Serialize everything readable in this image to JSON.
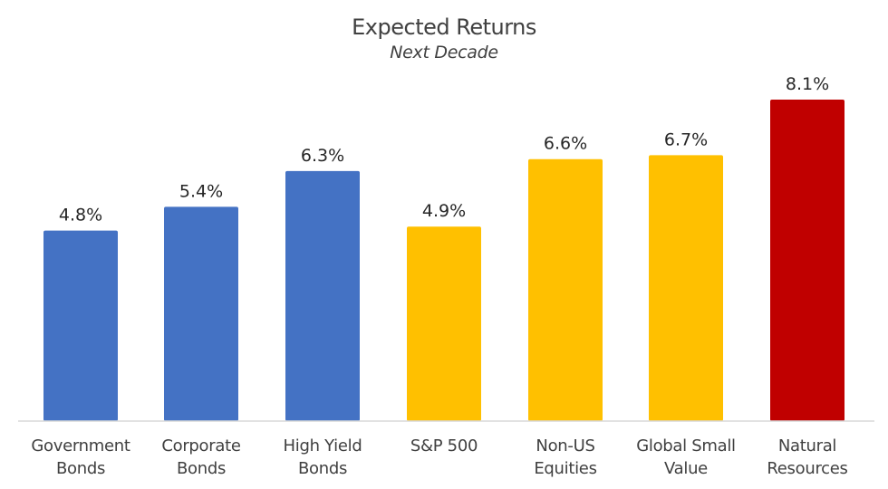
{
  "chart_data": {
    "type": "bar",
    "title": "Expected Returns",
    "subtitle": "Next Decade",
    "categories": [
      [
        "Government",
        "Bonds"
      ],
      [
        "Corporate",
        "Bonds"
      ],
      [
        "High Yield",
        "Bonds"
      ],
      [
        "S&P 500"
      ],
      [
        "Non-US",
        "Equities"
      ],
      [
        "Global Small",
        "Value"
      ],
      [
        "Natural",
        "Resources"
      ]
    ],
    "values": [
      4.8,
      5.4,
      6.3,
      4.9,
      6.6,
      6.7,
      8.1
    ],
    "data_labels": [
      "4.8%",
      "5.4%",
      "6.3%",
      "4.9%",
      "6.6%",
      "6.7%",
      "8.1%"
    ],
    "colors": [
      "#4472C4",
      "#4472C4",
      "#4472C4",
      "#FFC000",
      "#FFC000",
      "#FFC000",
      "#C00000"
    ],
    "ylim": [
      0,
      8.1
    ],
    "grid": false,
    "legend": "none",
    "xlabel": "",
    "ylabel": ""
  }
}
